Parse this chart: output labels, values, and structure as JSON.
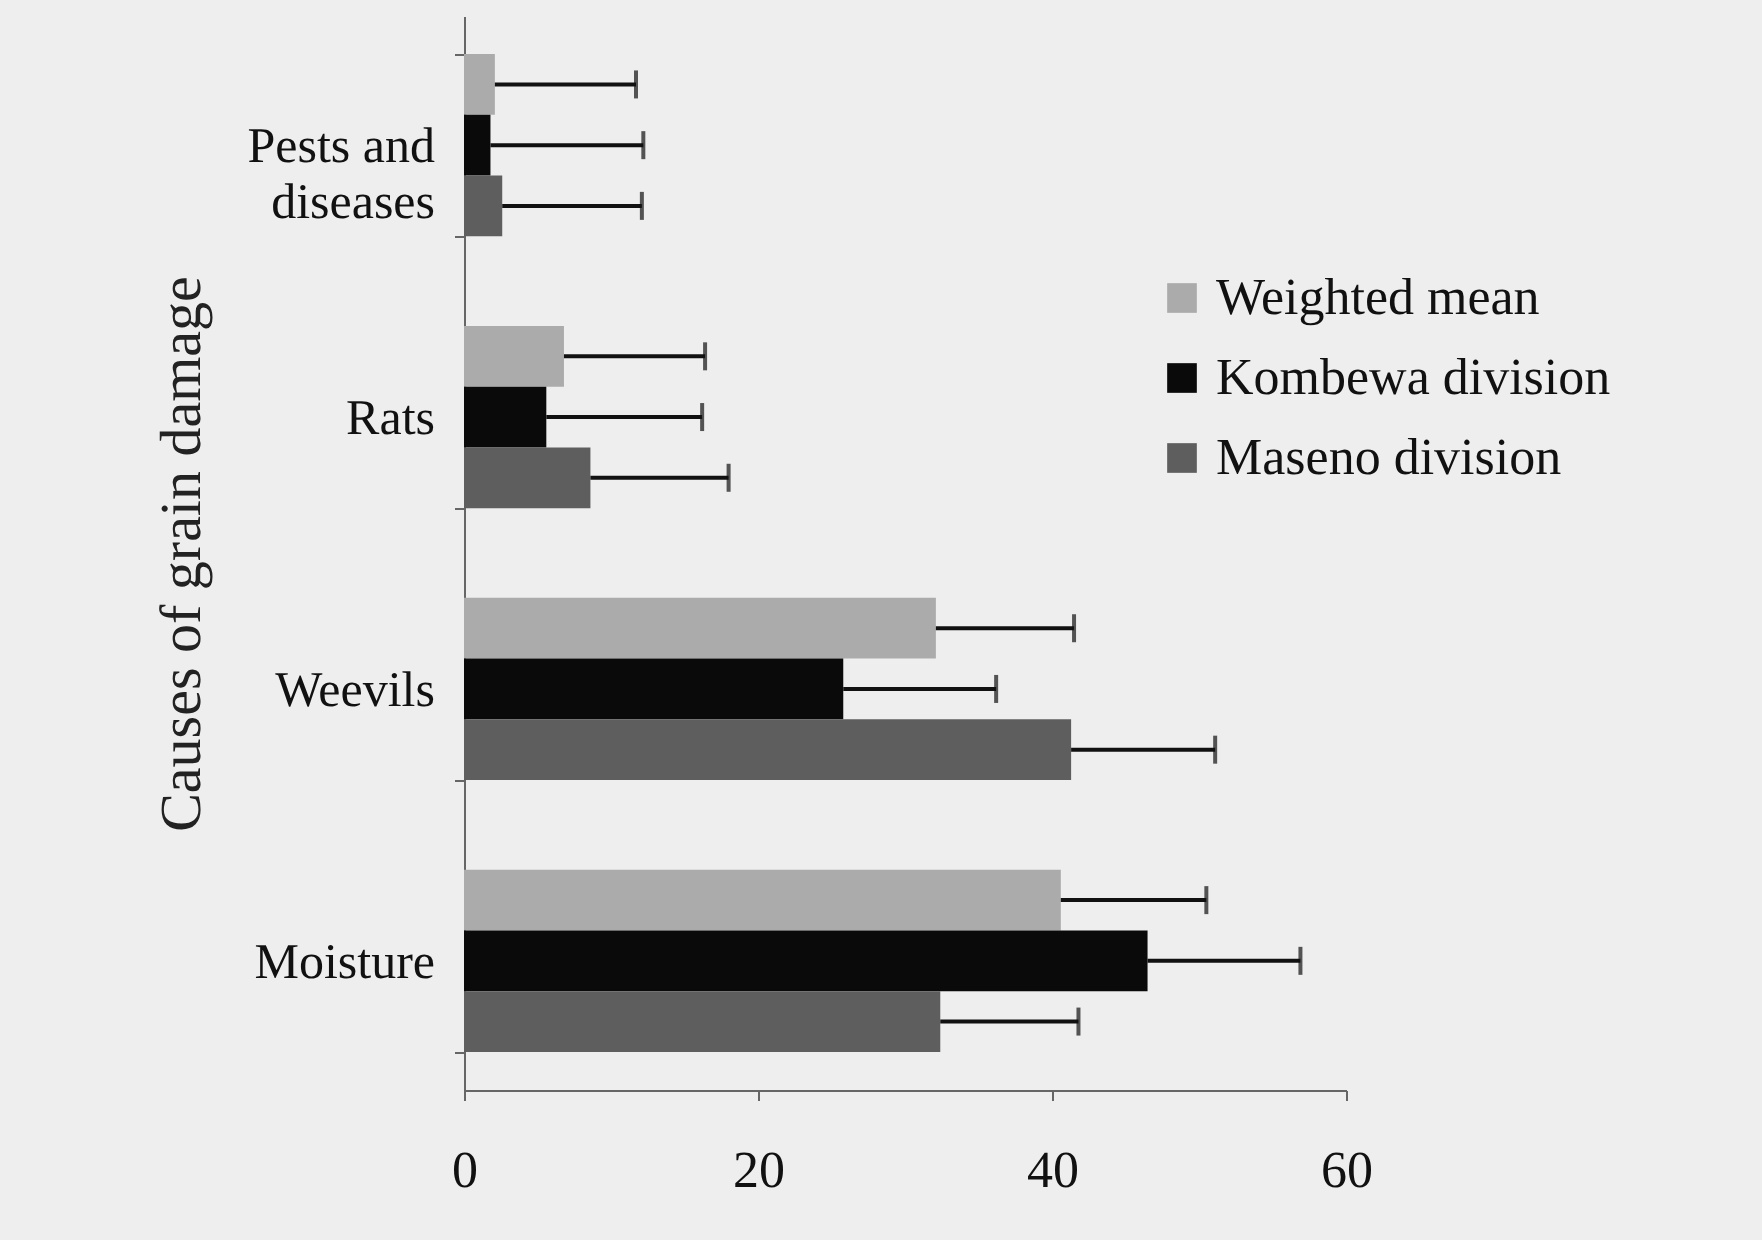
{
  "chart_data": {
    "type": "bar",
    "orientation": "horizontal",
    "ylabel": "Causes of grain damage",
    "categories": [
      "Pests and diseases",
      "Rats",
      "Weevils",
      "Moisture"
    ],
    "series": [
      {
        "name": "Weighted mean",
        "color": "#ababab",
        "values": [
          2.1,
          6.8,
          32.1,
          40.6
        ],
        "errors": [
          [
            2.1,
            11.7
          ],
          [
            6.8,
            16.4
          ],
          [
            32.1,
            41.5
          ],
          [
            40.6,
            50.5
          ]
        ]
      },
      {
        "name": "Kombewa division",
        "color": "#0a0a0a",
        "values": [
          1.8,
          5.6,
          25.8,
          46.5
        ],
        "errors": [
          [
            1.8,
            12.2
          ],
          [
            5.6,
            16.2
          ],
          [
            25.8,
            36.2
          ],
          [
            46.5,
            56.9
          ]
        ]
      },
      {
        "name": "Maseno division",
        "color": "#5e5e5e",
        "values": [
          2.6,
          8.6,
          41.3,
          32.4
        ],
        "errors": [
          [
            2.6,
            12.1
          ],
          [
            8.6,
            18.0
          ],
          [
            41.3,
            51.1
          ],
          [
            32.4,
            41.8
          ]
        ]
      }
    ],
    "xlim": [
      0,
      60
    ],
    "xticks": [
      0,
      20,
      40,
      60
    ],
    "legend": "right",
    "grid": false
  }
}
